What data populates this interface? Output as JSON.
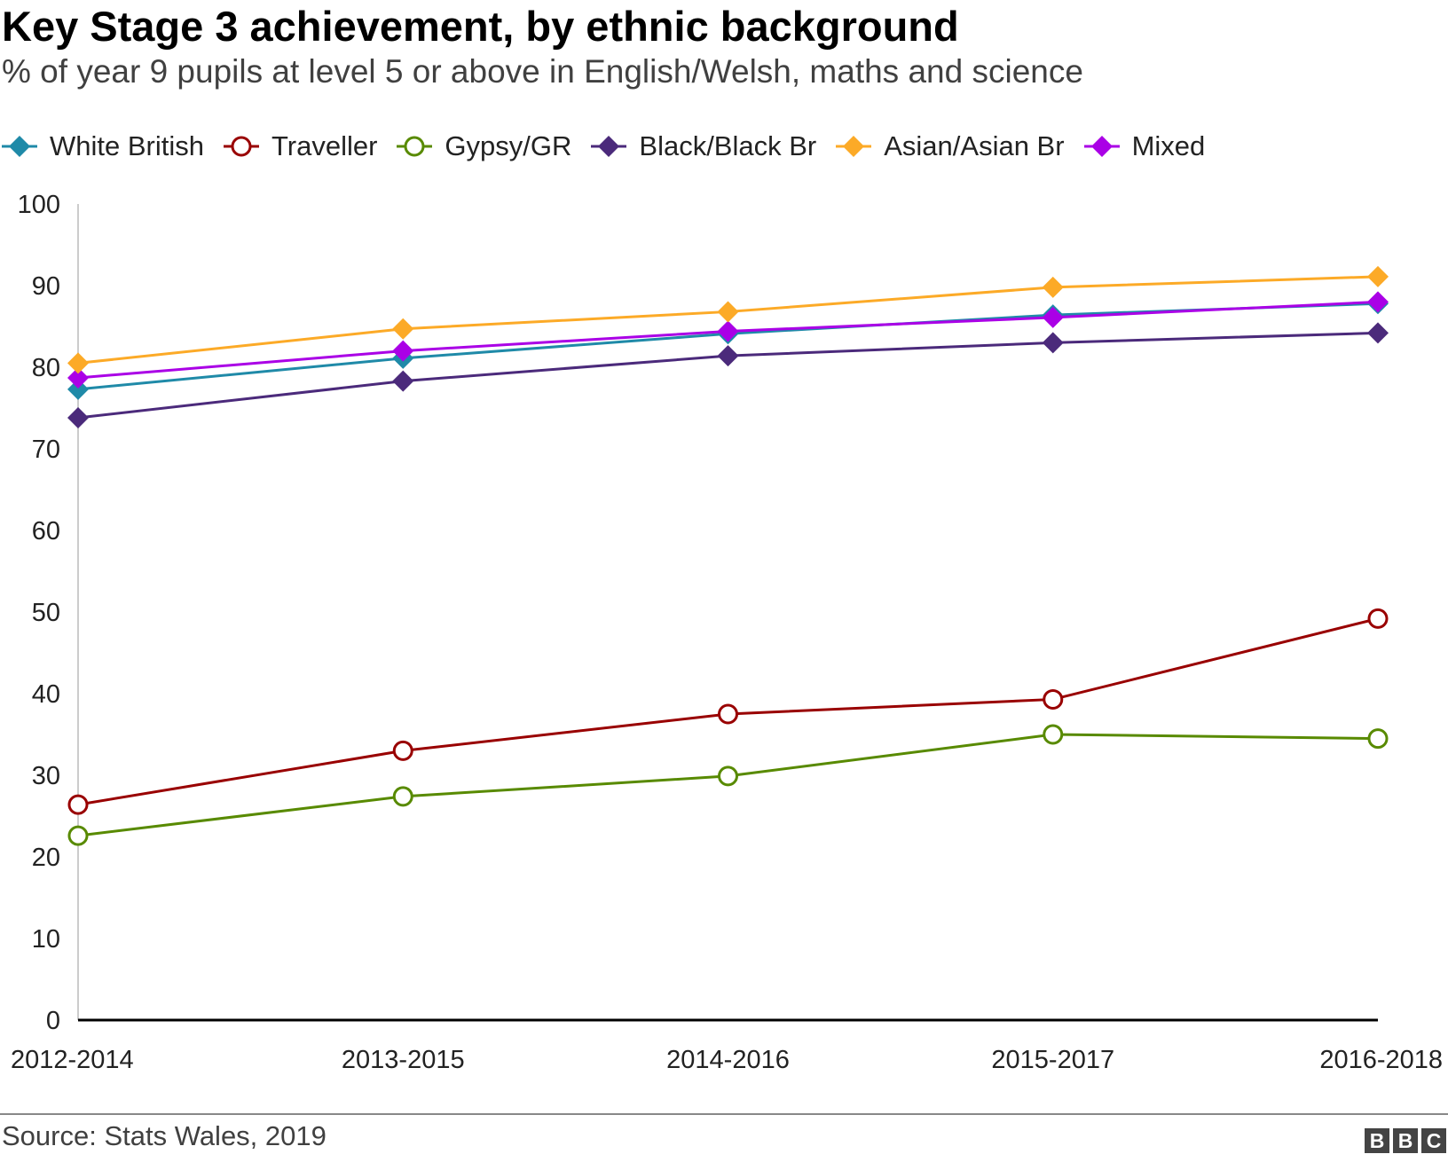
{
  "header": {
    "title": "Key Stage 3 achievement, by ethnic background",
    "subtitle": "% of year 9 pupils at level 5 or above in English/Welsh, maths and science"
  },
  "footer": {
    "source": "Source: Stats Wales, 2019",
    "logo_letters": [
      "B",
      "B",
      "C"
    ]
  },
  "chart_data": {
    "type": "line",
    "title": "Key Stage 3 achievement, by ethnic background",
    "subtitle": "% of year 9 pupils at level 5 or above in English/Welsh, maths and science",
    "categories": [
      "2012-2014",
      "2013-2015",
      "2014-2016",
      "2015-2017",
      "2016-2018"
    ],
    "ylim": [
      0,
      100
    ],
    "yticks": [
      0,
      10,
      20,
      30,
      40,
      50,
      60,
      70,
      80,
      90,
      100
    ],
    "grid": false,
    "legend_position": "top",
    "series": [
      {
        "name": "White British",
        "color": "#1f8aa8",
        "marker": "diamond-filled",
        "values": [
          77.3,
          81.1,
          84.1,
          86.4,
          87.8
        ]
      },
      {
        "name": "Traveller",
        "color": "#990000",
        "marker": "circle-open",
        "values": [
          26.4,
          33.0,
          37.5,
          39.3,
          49.2
        ]
      },
      {
        "name": "Gypsy/GR",
        "color": "#588a00",
        "marker": "circle-open",
        "values": [
          22.6,
          27.4,
          29.9,
          35.0,
          34.5
        ]
      },
      {
        "name": "Black/Black Br",
        "color": "#4b2a7b",
        "marker": "diamond-filled",
        "values": [
          73.8,
          78.3,
          81.4,
          83.0,
          84.2
        ]
      },
      {
        "name": "Asian/Asian Br",
        "color": "#fcaa27",
        "marker": "diamond-filled",
        "values": [
          80.5,
          84.7,
          86.8,
          89.8,
          91.1
        ]
      },
      {
        "name": "Mixed",
        "color": "#aa00e6",
        "marker": "diamond-filled",
        "values": [
          78.7,
          82.0,
          84.4,
          86.1,
          88.0
        ]
      }
    ]
  }
}
